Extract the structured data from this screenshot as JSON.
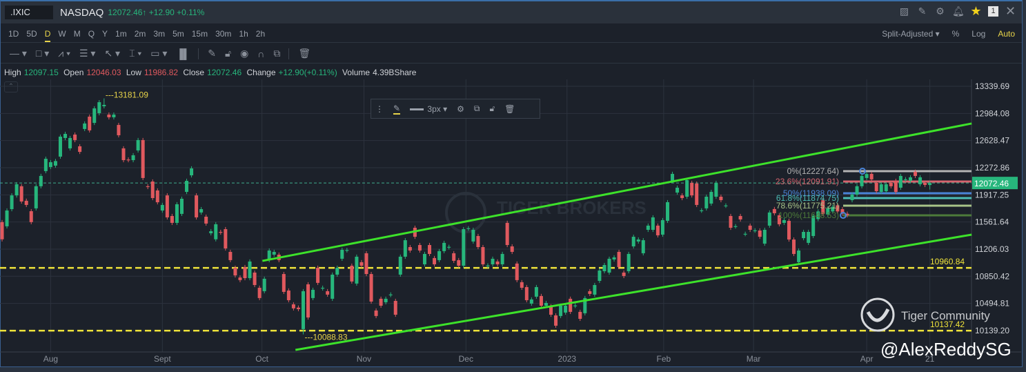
{
  "header": {
    "symbol": ".IXIC",
    "name": "NASDAQ",
    "price": "12072.46",
    "arrow": "↑",
    "change": "+12.90",
    "change_pct": "+0.11%",
    "notification_count": "1",
    "icons": [
      "chart-monitor-icon",
      "edit-icon",
      "gear-icon",
      "bell-icon",
      "star-icon",
      "close-icon"
    ]
  },
  "periods": {
    "items": [
      "1D",
      "5D",
      "D",
      "W",
      "M",
      "Q",
      "Y",
      "1m",
      "2m",
      "3m",
      "5m",
      "15m",
      "30m",
      "1h",
      "2h"
    ],
    "active": "D",
    "adjust": "Split-Adjusted ▾",
    "pct": "%",
    "log": "Log",
    "auto": "Auto"
  },
  "tools": [
    "line-tool-icon",
    "rectangle-tool-icon",
    "pattern-tool-icon",
    "fib-tool-icon",
    "arrow-tool-icon",
    "measure-tool-icon",
    "text-tool-icon",
    "candle-style-icon",
    "pencil-icon",
    "unlock-icon",
    "eye-icon",
    "magnet-icon",
    "layers-icon",
    "trash-icon"
  ],
  "ohlc": {
    "high_label": "High",
    "high": "12097.15",
    "open_label": "Open",
    "open": "12046.03",
    "low_label": "Low",
    "low": "11986.82",
    "close_label": "Close",
    "close": "12072.46",
    "change_label": "Change",
    "change": "+12.90(+0.11%)",
    "volume_label": "Volume",
    "volume": "4.39BShare"
  },
  "floating_toolbar": {
    "width": "3px ▾"
  },
  "watermark": {
    "brand": "TIGER BROKERS",
    "community": "Tiger Community",
    "author": "@AlexReddySG"
  },
  "colors": {
    "up": "#27b67c",
    "down": "#e0595e",
    "channel": "#3de22a",
    "level": "#f0e43a",
    "accent": "#e8d44a"
  },
  "chart_data": {
    "type": "candlestick",
    "y_ticks": [
      13339.69,
      12984.08,
      12628.47,
      12272.86,
      11917.25,
      11561.64,
      11206.03,
      10850.42,
      10494.81,
      10139.2
    ],
    "x_ticks": [
      {
        "label": "Aug",
        "index": 10
      },
      {
        "label": "Sept",
        "index": 33
      },
      {
        "label": "Oct",
        "index": 53.5
      },
      {
        "label": "Nov",
        "index": 74.5
      },
      {
        "label": "Dec",
        "index": 95.5
      },
      {
        "label": "2023",
        "index": 116.3
      },
      {
        "label": "Feb",
        "index": 136.2
      },
      {
        "label": "Mar",
        "index": 154.7
      },
      {
        "label": "Apr",
        "index": 178
      },
      {
        "label": "21",
        "index": 191
      }
    ],
    "last_price": 12072.46,
    "annotations": [
      {
        "label": "13181.09",
        "index": 21,
        "price": 13181.09
      },
      {
        "label": "10088.83",
        "index": 62,
        "price": 10088.83
      }
    ],
    "horizontal_levels": [
      {
        "label": "10960.84",
        "price": 10960.84
      },
      {
        "label": "10137.42",
        "price": 10137.42
      }
    ],
    "channel_lines": [
      {
        "from": [
          53.6,
          11052
        ],
        "to": [
          199.6,
          12852
        ]
      },
      {
        "from": [
          60.4,
          9886
        ],
        "to": [
          199.6,
          11396
        ]
      }
    ],
    "fibonacci": [
      {
        "label": "0%(12227.64)",
        "price": 12227.64,
        "color": "#b4b4b4"
      },
      {
        "label": "23.6%(12091.91)",
        "price": 12091.91,
        "color": "#d4646e"
      },
      {
        "label": "50%(11938.09)",
        "price": 11938.09,
        "color": "#4a84d8"
      },
      {
        "label": "61.8%(11874.75)",
        "price": 11874.75,
        "color": "#4cbcb4"
      },
      {
        "label": "78.6%(11775.21)",
        "price": 11775.21,
        "color": "#a8c488"
      },
      {
        "label": "100%(11648.53)",
        "price": 11648.53,
        "color": "#4d7a3a"
      }
    ],
    "candles_oc": [
      [
        11560,
        11335
      ],
      [
        11505,
        11712
      ],
      [
        11730,
        11910
      ],
      [
        11910,
        12056
      ],
      [
        12030,
        11830
      ],
      [
        11840,
        11785
      ],
      [
        11703,
        11560
      ],
      [
        11740,
        12030
      ],
      [
        12030,
        12165
      ],
      [
        12228,
        12390
      ],
      [
        12282,
        12345
      ],
      [
        12300,
        12360
      ],
      [
        12418,
        12680
      ],
      [
        12662,
        12716
      ],
      [
        12526,
        12662
      ],
      [
        12707,
        12635
      ],
      [
        12553,
        12480
      ],
      [
        12780,
        12852
      ],
      [
        12942,
        12762
      ],
      [
        12860,
        13050
      ],
      [
        12987,
        13131
      ],
      [
        13078,
        13096
      ],
      [
        12969,
        12933
      ],
      [
        12933,
        12969
      ],
      [
        12833,
        12698
      ],
      [
        12526,
        12372
      ],
      [
        12380,
        12372
      ],
      [
        12372,
        12436
      ],
      [
        12499,
        12635
      ],
      [
        12635,
        12138
      ],
      [
        12030,
        12020
      ],
      [
        12092,
        11875
      ],
      [
        11975,
        11820
      ],
      [
        11712,
        11785
      ],
      [
        11910,
        11622
      ],
      [
        11640,
        11550
      ],
      [
        11550,
        11794
      ],
      [
        11668,
        11866
      ],
      [
        11956,
        12101
      ],
      [
        12173,
        12264
      ],
      [
        11910,
        11622
      ],
      [
        11686,
        11730
      ],
      [
        11631,
        11541
      ],
      [
        11414,
        11441
      ],
      [
        11335,
        11532
      ],
      [
        11432,
        11423
      ],
      [
        11468,
        11215
      ],
      [
        11170,
        11062
      ],
      [
        10962,
        10862
      ],
      [
        10835,
        10800
      ],
      [
        10971,
        10826
      ],
      [
        10826,
        11044
      ],
      [
        10899,
        10736
      ],
      [
        10700,
        10565
      ],
      [
        10655,
        10818
      ],
      [
        11062,
        11188
      ],
      [
        11134,
        11170
      ],
      [
        11134,
        11062
      ],
      [
        10880,
        10646
      ],
      [
        10664,
        10537
      ],
      [
        10483,
        10430
      ],
      [
        10440,
        10420
      ],
      [
        10158,
        10655
      ],
      [
        10745,
        10311
      ],
      [
        10565,
        10673
      ],
      [
        10962,
        10764
      ],
      [
        10691,
        10700
      ],
      [
        10655,
        10610
      ],
      [
        10556,
        10872
      ],
      [
        10872,
        10962
      ],
      [
        11080,
        11197
      ],
      [
        11190,
        11195
      ],
      [
        10989,
        10782
      ],
      [
        10755,
        11107
      ],
      [
        11035,
        10989
      ],
      [
        11152,
        10880
      ],
      [
        10880,
        10519
      ],
      [
        10402,
        10330
      ],
      [
        10556,
        10465
      ],
      [
        10510,
        10556
      ],
      [
        10605,
        10612
      ],
      [
        10528,
        10347
      ],
      [
        10872,
        11107
      ],
      [
        11107,
        11323
      ],
      [
        11233,
        11188
      ],
      [
        11486,
        11368
      ],
      [
        11260,
        11188
      ],
      [
        11007,
        11143
      ],
      [
        11260,
        11143
      ],
      [
        11089,
        11007
      ],
      [
        11062,
        11180
      ],
      [
        11180,
        11288
      ],
      [
        11230,
        11236
      ],
      [
        11152,
        11053
      ],
      [
        11062,
        10989
      ],
      [
        10989,
        11468
      ],
      [
        11475,
        11480
      ],
      [
        11306,
        11459
      ],
      [
        11378,
        11233
      ],
      [
        11233,
        11007
      ],
      [
        10986,
        10992
      ],
      [
        11007,
        11080
      ],
      [
        11044,
        11007
      ],
      [
        11007,
        11143
      ],
      [
        11550,
        11260
      ],
      [
        11242,
        11170
      ],
      [
        11017,
        10800
      ],
      [
        10773,
        10700
      ],
      [
        10709,
        10537
      ],
      [
        10492,
        10547
      ],
      [
        10583,
        10709
      ],
      [
        10592,
        10465
      ],
      [
        10465,
        10501
      ],
      [
        10456,
        10347
      ],
      [
        10338,
        10203
      ],
      [
        10330,
        10465
      ],
      [
        10375,
        10465
      ],
      [
        10556,
        10384
      ],
      [
        10462,
        10468
      ],
      [
        10384,
        10293
      ],
      [
        10366,
        10565
      ],
      [
        10655,
        10619
      ],
      [
        10610,
        10736
      ],
      [
        10790,
        10926
      ],
      [
        10917,
        10998
      ],
      [
        10899,
        11080
      ],
      [
        11071,
        11098
      ],
      [
        11170,
        10971
      ],
      [
        10899,
        10854
      ],
      [
        10917,
        11143
      ],
      [
        11242,
        11368
      ],
      [
        11306,
        11332
      ],
      [
        11152,
        11323
      ],
      [
        11459,
        11514
      ],
      [
        11459,
        11622
      ],
      [
        11514,
        11387
      ],
      [
        11396,
        11586
      ],
      [
        11577,
        11821
      ],
      [
        12101,
        12192
      ],
      [
        11947,
        12011
      ],
      [
        11910,
        11875
      ],
      [
        11893,
        12110
      ],
      [
        12074,
        11910
      ],
      [
        12065,
        11785
      ],
      [
        11710,
        11714
      ],
      [
        11740,
        11893
      ],
      [
        11803,
        11956
      ],
      [
        11893,
        12074
      ],
      [
        11893,
        11848
      ],
      [
        11774,
        11778
      ],
      [
        11640,
        11486
      ],
      [
        11503,
        11507
      ],
      [
        11640,
        11595
      ],
      [
        11403,
        11407
      ],
      [
        11514,
        11459
      ],
      [
        11448,
        11452
      ],
      [
        11450,
        11368
      ],
      [
        11278,
        11459
      ],
      [
        11514,
        11686
      ],
      [
        11731,
        11676
      ],
      [
        11649,
        11532
      ],
      [
        11550,
        11586
      ],
      [
        11577,
        11332
      ],
      [
        11332,
        11143
      ],
      [
        11035,
        11188
      ],
      [
        11350,
        11432
      ],
      [
        11288,
        11432
      ],
      [
        11378,
        11640
      ],
      [
        11600,
        11700
      ],
      [
        11848,
        11668
      ],
      [
        11660,
        11740
      ],
      [
        11700,
        11760
      ],
      [
        11780,
        11700
      ],
      [
        11730,
        11670
      ],
      [
        11670,
        11650
      ],
      [
        11848,
        11921
      ],
      [
        11921,
        12030
      ],
      [
        12030,
        12165
      ],
      [
        12138,
        12190
      ],
      [
        12192,
        12120
      ],
      [
        12074,
        11965
      ],
      [
        11956,
        12056
      ],
      [
        11965,
        12056
      ],
      [
        12074,
        12030
      ],
      [
        12101,
        11956
      ],
      [
        12011,
        12165
      ],
      [
        12118,
        12122
      ],
      [
        12101,
        12147
      ],
      [
        12220,
        12165
      ],
      [
        12056,
        12147
      ],
      [
        12074,
        12047
      ],
      [
        12046.03,
        12072.46
      ]
    ]
  }
}
